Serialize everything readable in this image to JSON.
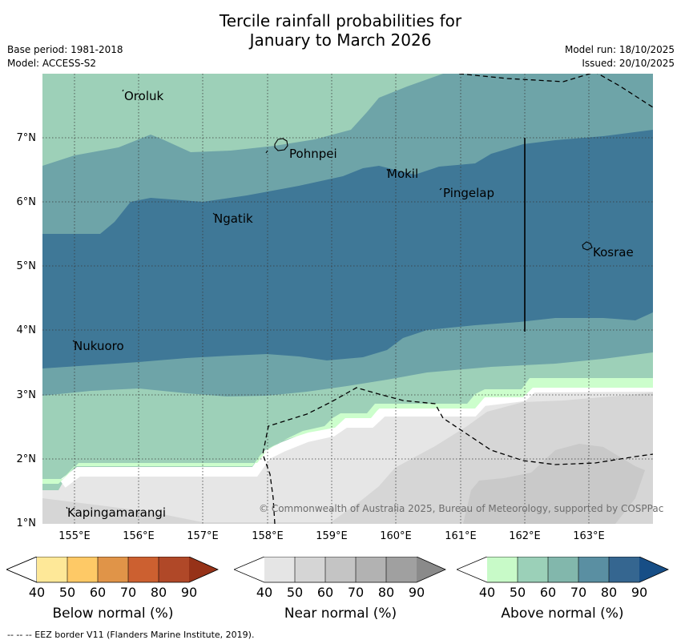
{
  "title_line1": "Tercile rainfall probabilities for",
  "title_line2": "January to March 2026",
  "meta_left": {
    "base_period": "Base period: 1981-2018",
    "model": "Model: ACCESS-S2"
  },
  "meta_right": {
    "model_run": "Model run: 18/10/2025",
    "issued": "Issued: 20/10/2025"
  },
  "axes": {
    "lat_labels": [
      "7°N",
      "6°N",
      "5°N",
      "4°N",
      "3°N",
      "2°N",
      "1°N"
    ],
    "lon_labels": [
      "155°E",
      "156°E",
      "157°E",
      "158°E",
      "159°E",
      "160°E",
      "161°E",
      "162°E",
      "163°E"
    ]
  },
  "places": [
    "Oroluk",
    "Pohnpei",
    "Mokil",
    "Pingelap",
    "Ngatik",
    "Kosrae",
    "Nukuoro",
    "Kapingamarangi"
  ],
  "copyright": "© Commonwealth of Australia 2025, Bureau of Meteorology, supported by COSPPac",
  "legends": [
    {
      "label": "Below normal (%)",
      "ticks": [
        "40",
        "50",
        "60",
        "70",
        "80",
        "90"
      ],
      "colors": [
        "#ffffff",
        "#fee898",
        "#fec966",
        "#e09448",
        "#cc6030",
        "#b04828",
        "#963218"
      ]
    },
    {
      "label": "Near normal (%)",
      "ticks": [
        "40",
        "50",
        "60",
        "70",
        "80",
        "90"
      ],
      "colors": [
        "#ffffff",
        "#e5e5e5",
        "#d5d5d5",
        "#c4c4c4",
        "#b2b2b2",
        "#a0a0a0",
        "#8a8a8a"
      ]
    },
    {
      "label": "Above normal (%)",
      "ticks": [
        "40",
        "50",
        "60",
        "70",
        "80",
        "90"
      ],
      "colors": [
        "#ffffff",
        "#c8fac8",
        "#9bd0b8",
        "#82b7ac",
        "#5a8fa2",
        "#356690",
        "#174e86"
      ]
    }
  ],
  "footer": "--  --  -- EEZ border V11 (Flanders Marine Institute, 2019).",
  "map_colors": {
    "above_50": "#9dd0b8",
    "above_60": "#6ea4a8",
    "above_70": "#3f7897",
    "near_light": "#e6e6e6",
    "near_mid": "#d6d6d6",
    "near_dark": "#c9c9c9",
    "green_light": "#ccfecc"
  }
}
